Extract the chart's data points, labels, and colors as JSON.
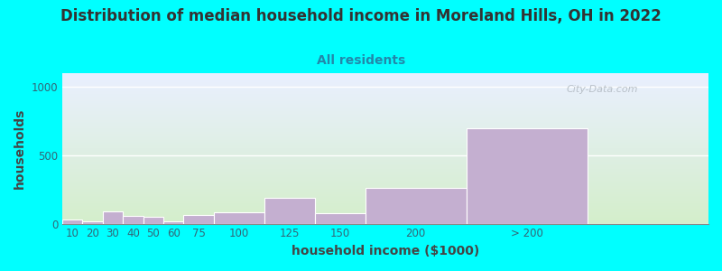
{
  "title": "Distribution of median household income in Moreland Hills, OH in 2022",
  "subtitle": "All residents",
  "xlabel": "household income ($1000)",
  "ylabel": "households",
  "categories": [
    "10",
    "20",
    "30",
    "40",
    "50",
    "60",
    "75",
    "100",
    "125",
    "150",
    "200",
    "> 200"
  ],
  "left_edges": [
    0,
    10,
    20,
    30,
    40,
    50,
    60,
    75,
    100,
    125,
    150,
    200
  ],
  "widths": [
    10,
    10,
    10,
    10,
    10,
    10,
    15,
    25,
    25,
    25,
    50,
    60
  ],
  "values": [
    30,
    20,
    90,
    55,
    50,
    15,
    60,
    85,
    190,
    75,
    260,
    700
  ],
  "bar_color": "#c4afd0",
  "background_outer": "#00ffff",
  "background_plot_top": "#eaf0ff",
  "background_plot_bottom": "#d4eecb",
  "title_color": "#333333",
  "subtitle_color": "#2288aa",
  "axis_label_color": "#444444",
  "tick_color": "#336677",
  "grid_color": "#ffffff",
  "yticks": [
    0,
    500,
    1000
  ],
  "ylim": [
    0,
    1100
  ],
  "xlim": [
    0,
    260
  ],
  "watermark": "City-Data.com",
  "title_fontsize": 12,
  "subtitle_fontsize": 10,
  "axis_label_fontsize": 10
}
